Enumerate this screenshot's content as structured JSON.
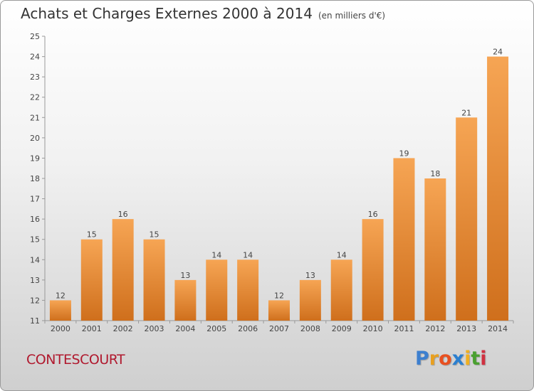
{
  "title": "Achats et Charges Externes 2000 à 2014",
  "unit_label": "(en milliers d'€)",
  "town": "CONTESCOURT",
  "brand": {
    "letters": [
      "P",
      "r",
      "o",
      "x",
      "i",
      "t",
      "i"
    ],
    "colors": [
      "#3d7fcf",
      "#e8a020",
      "#e85020",
      "#2a7fd0",
      "#f0b020",
      "#4aa030",
      "#d03040"
    ]
  },
  "colors": {
    "bar_light": "#f6a554",
    "bar_dark": "#cf6f1c",
    "town": "#b0192e"
  },
  "chart_data": {
    "type": "bar",
    "categories": [
      "2000",
      "2001",
      "2002",
      "2003",
      "2004",
      "2005",
      "2006",
      "2007",
      "2008",
      "2009",
      "2010",
      "2011",
      "2012",
      "2013",
      "2014"
    ],
    "values": [
      12,
      15,
      16,
      15,
      13,
      14,
      14,
      12,
      13,
      14,
      16,
      19,
      18,
      21,
      24
    ],
    "ylim": [
      11,
      25
    ],
    "yticks": [
      11,
      12,
      13,
      14,
      15,
      16,
      17,
      18,
      19,
      20,
      21,
      22,
      23,
      24,
      25
    ],
    "grid": false
  }
}
